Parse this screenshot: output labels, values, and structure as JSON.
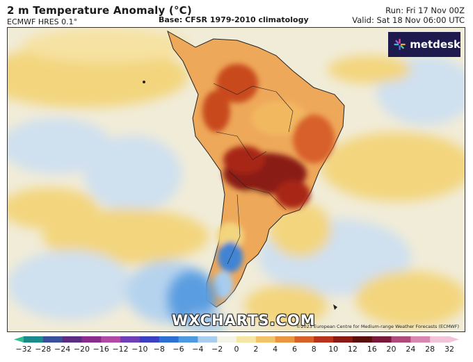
{
  "header": {
    "title": "2 m Temperature Anomaly (°C)",
    "model": "ECMWF HRES 0.1°",
    "base": "Base: CFSR 1979-2010 climatology",
    "run": "Run: Fri 17 Nov 00Z",
    "valid": "Valid: Sat 18 Nov 06:00 UTC"
  },
  "brand": {
    "label": "metdesk"
  },
  "watermark": "WXCHARTS.COM",
  "copyright": "©2023 European Centre for Medium-range Weather Forecasts (ECMWF)",
  "colorbar": {
    "ticks": [
      "−32",
      "−28",
      "−24",
      "−20",
      "−16",
      "−12",
      "−10",
      "−8",
      "−6",
      "−4",
      "−2",
      "0",
      "2",
      "4",
      "6",
      "8",
      "10",
      "12",
      "16",
      "20",
      "24",
      "28",
      "32"
    ],
    "colors": [
      "#2fbf8f",
      "#1b8a8a",
      "#3a4f9a",
      "#5a2d82",
      "#8a2b8e",
      "#b04aa6",
      "#6e3fb6",
      "#3b3fc2",
      "#2e6fd3",
      "#4d9ae0",
      "#a8cdee",
      "#f4f4e6",
      "#f6e6a6",
      "#f2c36a",
      "#ea9640",
      "#d8612a",
      "#b8321c",
      "#8a1b14",
      "#5a0f0a",
      "#7a1a3a",
      "#b04a7a",
      "#d887b0",
      "#f2c4d8"
    ]
  },
  "map": {
    "legend_colors": {
      "ocean_warm": "#f3dc95",
      "ocean_neutral": "#f1ecd8",
      "cool": "#a9cdee",
      "cold": "#3f84d3",
      "hot": "#c8481f",
      "very_hot": "#7a1a10"
    }
  }
}
